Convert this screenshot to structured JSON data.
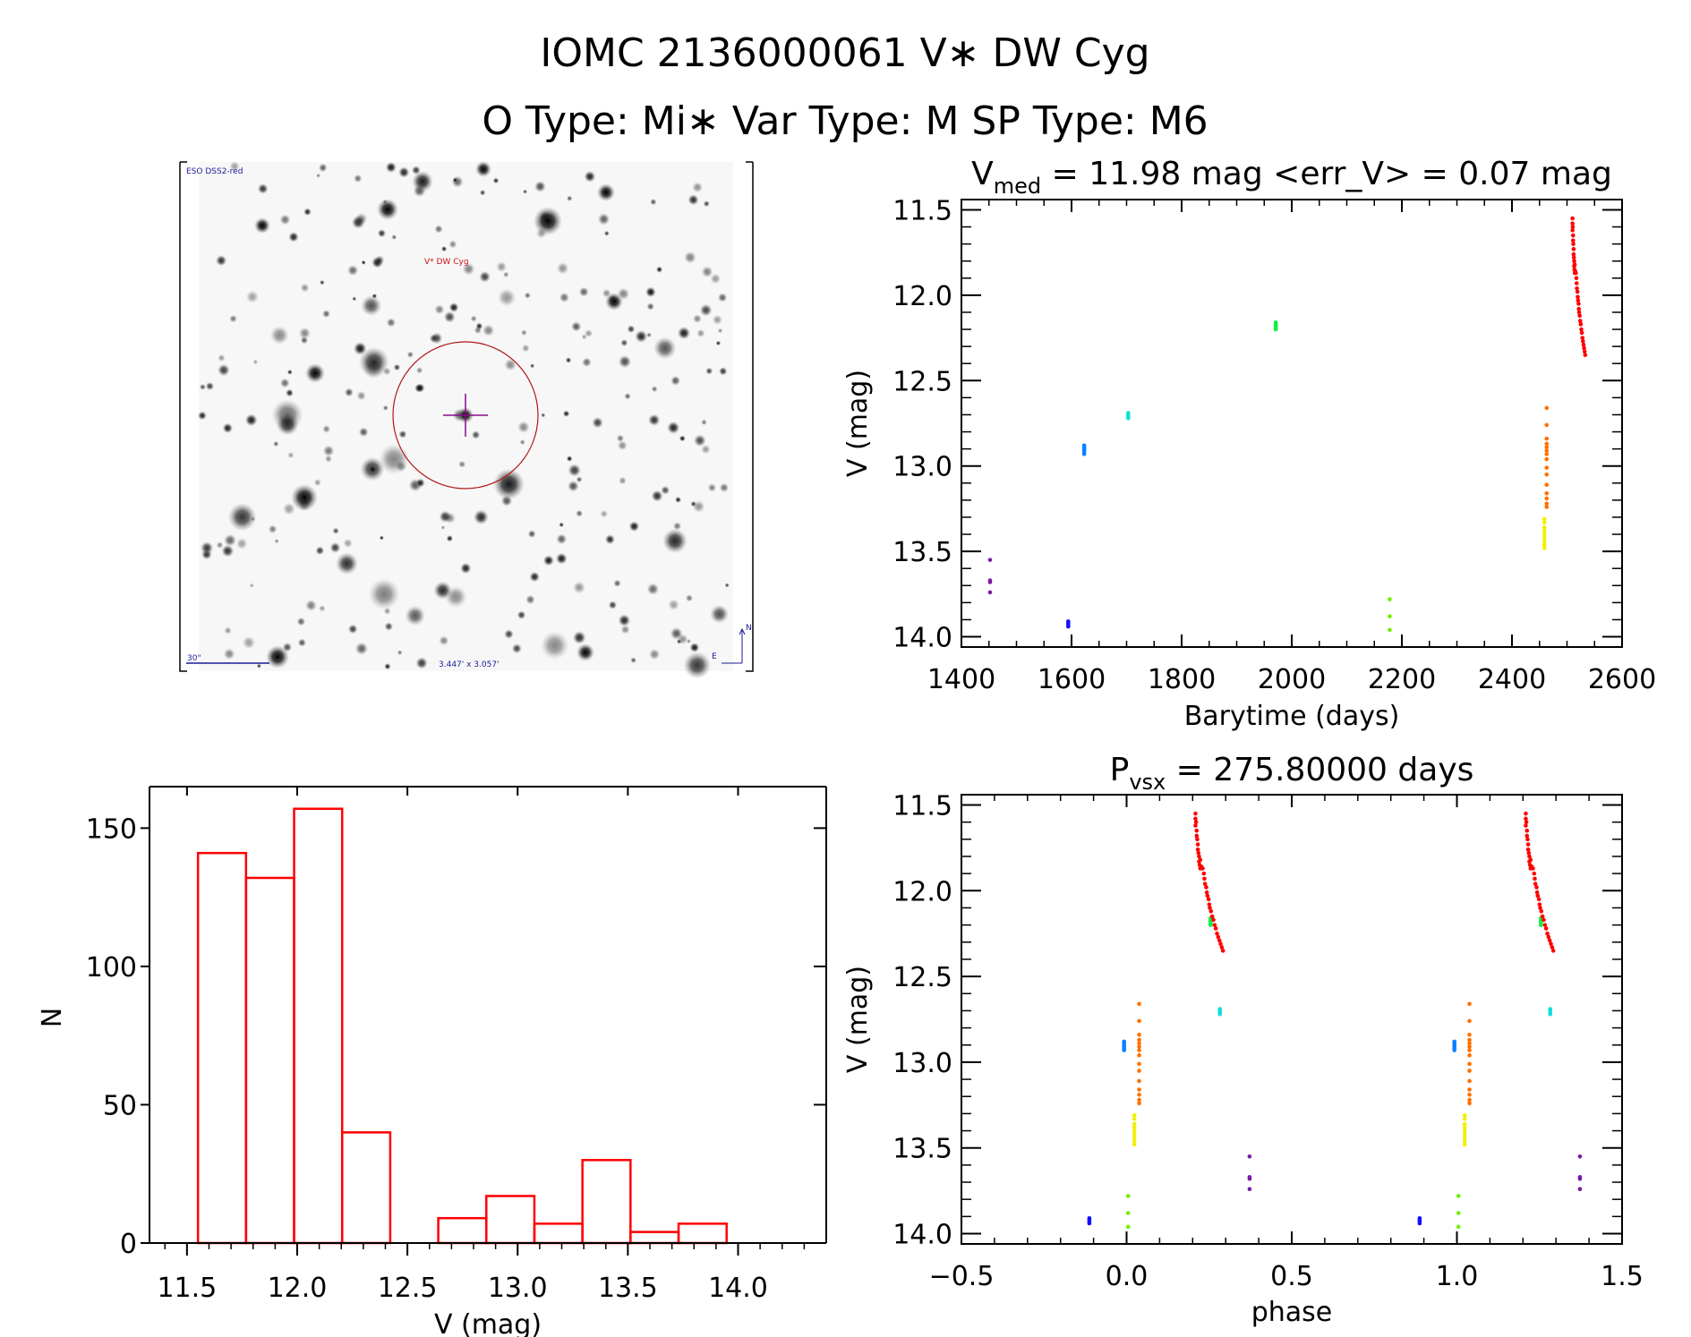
{
  "header": {
    "title": "IOMC 2136000061    V∗ DW Cyg",
    "subtitle": "O Type: Mi∗   Var Type: M   SP Type: M6"
  },
  "finder_image": {
    "survey_label": "ESO DSS2-red",
    "target_label": "V* DW Cyg",
    "scale_label": "30\"",
    "fov_label": "3.447' x 3.057'",
    "north_label": "N",
    "east_label": "E"
  },
  "colors": {
    "histogram": "#ff0000",
    "axes": "#000000",
    "circle": "#b01818",
    "cross": "#8a0a8a"
  },
  "chart_data": [
    {
      "id": "lightcurve",
      "type": "scatter",
      "title_main": "V",
      "title_sub": "med",
      "title_rest": " = 11.98 mag <err_V> = 0.07 mag",
      "xlabel": "Barytime (days)",
      "ylabel": "V (mag)",
      "xlim": [
        1400,
        2600
      ],
      "ylim": [
        11.44,
        14.06
      ],
      "y_inverted": true,
      "xticks": [
        "1400",
        "1600",
        "1800",
        "2000",
        "2200",
        "2400",
        "2600"
      ],
      "yticks": [
        "11.5",
        "12.0",
        "12.5",
        "13.0",
        "13.5",
        "14.0"
      ],
      "grid": false
    },
    {
      "id": "phase",
      "type": "scatter",
      "title_main": "P",
      "title_sub": "vsx",
      "title_rest": " = 275.80000 days",
      "period": 275.8,
      "epoch": 2452.5,
      "xlabel": "phase",
      "ylabel": "V (mag)",
      "xlim": [
        -0.5,
        1.5
      ],
      "ylim": [
        11.44,
        14.06
      ],
      "y_inverted": true,
      "xticks": [
        "−0.5",
        "0.0",
        "0.5",
        "1.0",
        "1.5"
      ],
      "yticks": [
        "11.5",
        "12.0",
        "12.5",
        "13.0",
        "13.5",
        "14.0"
      ],
      "grid": false
    },
    {
      "id": "histogram",
      "type": "bar",
      "xlabel": "V (mag)",
      "ylabel": "N",
      "xlim": [
        11.33,
        14.4
      ],
      "ylim": [
        0,
        165
      ],
      "bin_start": 11.55,
      "bin_width": 0.218,
      "values": [
        141,
        132,
        157,
        40,
        0,
        9,
        17,
        7,
        30,
        4,
        7
      ],
      "xticks": [
        "11.5",
        "12.0",
        "12.5",
        "13.0",
        "13.5",
        "14.0"
      ],
      "yticks": [
        "0",
        "50",
        "100",
        "150"
      ],
      "grid": false
    }
  ],
  "observations": [
    {
      "color": "#7a1aa6",
      "points": [
        [
          1452,
          13.55
        ],
        [
          1452,
          13.67
        ],
        [
          1452,
          13.68
        ],
        [
          1452,
          13.74
        ]
      ]
    },
    {
      "color": "#1010ff",
      "points": [
        [
          1594,
          13.91
        ],
        [
          1594,
          13.92
        ],
        [
          1594,
          13.93
        ],
        [
          1594,
          13.94
        ]
      ]
    },
    {
      "color": "#0a82ff",
      "points": [
        [
          1623,
          12.88
        ],
        [
          1623,
          12.89
        ],
        [
          1623,
          12.9
        ],
        [
          1623,
          12.91
        ],
        [
          1623,
          12.92
        ],
        [
          1623,
          12.93
        ]
      ]
    },
    {
      "color": "#10e0d8",
      "points": [
        [
          1703,
          12.69
        ],
        [
          1703,
          12.7
        ],
        [
          1703,
          12.71
        ],
        [
          1703,
          12.72
        ]
      ]
    },
    {
      "color": "#10f040",
      "points": [
        [
          1971,
          12.16
        ],
        [
          1971,
          12.17
        ],
        [
          1971,
          12.18
        ],
        [
          1971,
          12.19
        ],
        [
          1971,
          12.2
        ]
      ]
    },
    {
      "color": "#70f000",
      "points": [
        [
          2178,
          13.78
        ],
        [
          2178,
          13.88
        ],
        [
          2178,
          13.96
        ]
      ]
    },
    {
      "color": "#f0f000",
      "points": [
        [
          2459,
          13.31
        ],
        [
          2459,
          13.33
        ],
        [
          2459,
          13.36
        ],
        [
          2459,
          13.38
        ],
        [
          2459,
          13.4
        ],
        [
          2459,
          13.42
        ],
        [
          2459,
          13.44
        ],
        [
          2459,
          13.46
        ],
        [
          2459,
          13.48
        ]
      ]
    },
    {
      "color": "#ff7000",
      "points": [
        [
          2463,
          12.66
        ],
        [
          2463,
          12.76
        ],
        [
          2463,
          12.84
        ],
        [
          2463,
          12.87
        ],
        [
          2463,
          12.89
        ],
        [
          2463,
          12.91
        ],
        [
          2463,
          12.93
        ],
        [
          2463,
          12.96
        ],
        [
          2463,
          13.01
        ],
        [
          2463,
          13.05
        ],
        [
          2463,
          13.11
        ],
        [
          2463,
          13.16
        ],
        [
          2463,
          13.19
        ],
        [
          2463,
          13.22
        ],
        [
          2463,
          13.24
        ]
      ]
    },
    {
      "color": "#ff0000",
      "points": [
        [
          2510,
          11.55
        ],
        [
          2510,
          11.58
        ],
        [
          2510,
          11.62
        ],
        [
          2510.5,
          11.6
        ],
        [
          2511,
          11.65
        ],
        [
          2511,
          11.68
        ],
        [
          2511.5,
          11.7
        ],
        [
          2512,
          11.73
        ],
        [
          2512,
          11.76
        ],
        [
          2512.5,
          11.78
        ],
        [
          2513,
          11.8
        ],
        [
          2513,
          11.83
        ],
        [
          2513.5,
          11.85
        ],
        [
          2514,
          11.82
        ],
        [
          2514,
          11.87
        ],
        [
          2515,
          11.86
        ],
        [
          2516,
          11.87
        ],
        [
          2517,
          11.9
        ],
        [
          2517.5,
          11.93
        ],
        [
          2518,
          11.96
        ],
        [
          2519,
          11.98
        ],
        [
          2519.5,
          12.01
        ],
        [
          2520,
          12.03
        ],
        [
          2521,
          12.05
        ],
        [
          2521.5,
          12.08
        ],
        [
          2522,
          12.1
        ],
        [
          2523,
          12.12
        ],
        [
          2524,
          12.15
        ],
        [
          2525,
          12.17
        ],
        [
          2526,
          12.2
        ],
        [
          2527,
          12.22
        ],
        [
          2528,
          12.25
        ],
        [
          2529,
          12.27
        ],
        [
          2530,
          12.29
        ],
        [
          2531,
          12.31
        ],
        [
          2532,
          12.33
        ],
        [
          2533,
          12.35
        ]
      ]
    }
  ]
}
